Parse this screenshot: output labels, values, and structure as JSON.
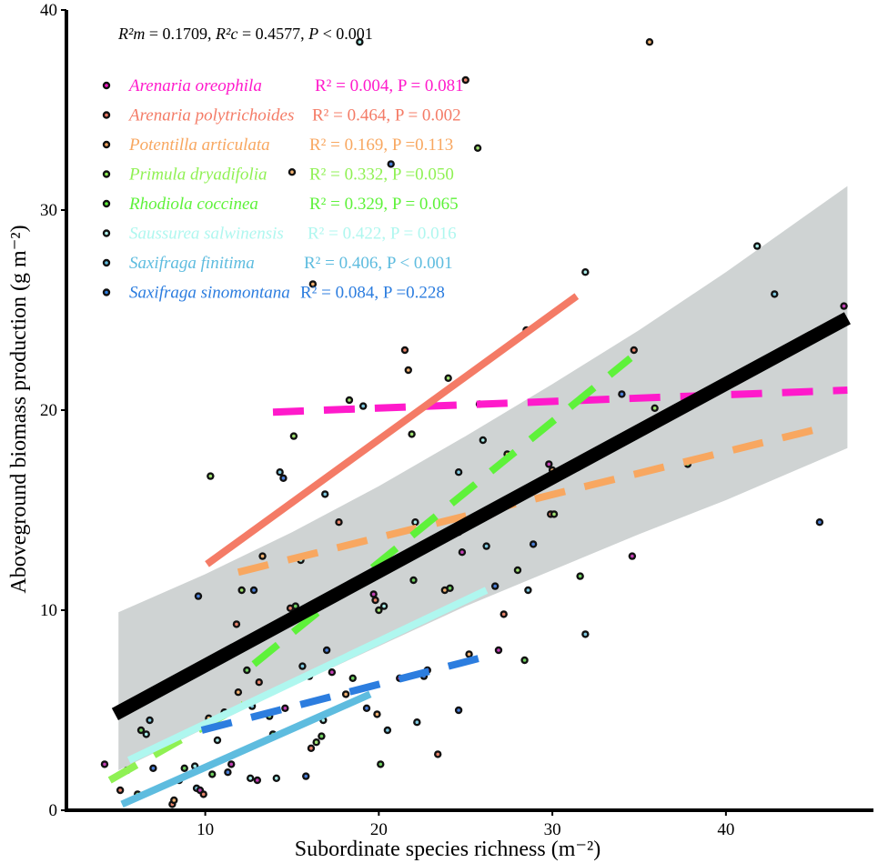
{
  "chart_data": {
    "type": "scatter",
    "title": "",
    "xlabel": "Subordinate species richness (m⁻²)",
    "ylabel": "Aboveground biomass production  (g m⁻²)",
    "xlim": [
      2,
      48.5
    ],
    "ylim": [
      0,
      40
    ],
    "xticks": [
      10,
      20,
      30,
      40
    ],
    "yticks": [
      0,
      10,
      20,
      30,
      40
    ],
    "stats_text": {
      "part1": "R²m",
      "part2": " = 0.1709,  ",
      "part3": "R²c",
      "part4": " = 0.4577, ",
      "part5": "P",
      "part6": " < 0.001"
    },
    "overall_fit": {
      "color": "#000000",
      "line": [
        [
          4.8,
          4.8
        ],
        [
          47,
          24.6
        ]
      ],
      "ci_band": {
        "x": [
          5,
          10,
          15,
          20,
          25,
          30,
          35,
          40,
          47
        ],
        "lower": [
          2.0,
          4.1,
          6.2,
          8.2,
          10.2,
          12.0,
          13.8,
          15.5,
          18.1
        ],
        "upper": [
          9.9,
          11.8,
          13.9,
          16.2,
          18.7,
          21.3,
          24.0,
          26.9,
          31.2
        ]
      }
    },
    "series": [
      {
        "name": "Arenaria oreophila",
        "stat": "R² = 0.004, P = 0.081",
        "color": "#ff1acb",
        "dash": true,
        "line": [
          [
            13.9,
            19.9
          ],
          [
            47,
            21.0
          ]
        ]
      },
      {
        "name": "Arenaria polytrichoides",
        "stat": "R² = 0.464,  P = 0.002",
        "color": "#f47b66",
        "dash": false,
        "line": [
          [
            10.1,
            12.3
          ],
          [
            31.4,
            25.7
          ]
        ]
      },
      {
        "name": "Potentilla articulata",
        "stat": "R² = 0.169, P =0.113",
        "color": "#f8a760",
        "dash": true,
        "line": [
          [
            11.9,
            11.9
          ],
          [
            45.5,
            19.1
          ]
        ]
      },
      {
        "name": "Primula dryadifolia",
        "stat": "R² = 0.332, P =0.050",
        "color": "#8ff153",
        "dash": true,
        "line": [
          [
            4.5,
            1.5
          ],
          [
            12.2,
            5.3
          ]
        ]
      },
      {
        "name": "Rhodiola coccinea",
        "stat": "R² = 0.329, P = 0.065",
        "color": "#5ef23a",
        "dash": true,
        "line": [
          [
            12.8,
            7.3
          ],
          [
            34.5,
            22.6
          ]
        ]
      },
      {
        "name": "Saussurea salwinensis",
        "stat": "R² = 0.422, P = 0.016",
        "color": "#aff7ef",
        "dash": false,
        "line": [
          [
            5.6,
            2.5
          ],
          [
            26.2,
            11.0
          ]
        ]
      },
      {
        "name": "Saxifraga finitima",
        "stat": "R² = 0.406, P < 0.001",
        "color": "#5ebcdf",
        "dash": false,
        "line": [
          [
            5.2,
            0.3
          ],
          [
            19.5,
            5.8
          ]
        ]
      },
      {
        "name": "Saxifraga sinomontana",
        "stat": "R² = 0.084, P =0.228",
        "color": "#2c7ddf",
        "dash": true,
        "line": [
          [
            9.8,
            4.0
          ],
          [
            25.8,
            7.6
          ]
        ]
      }
    ],
    "points": [
      [
        4.2,
        2.3
      ],
      [
        5.1,
        1.0
      ],
      [
        5.5,
        2.0
      ],
      [
        6.1,
        0.8
      ],
      [
        6.3,
        4.0
      ],
      [
        6.6,
        3.8
      ],
      [
        6.8,
        4.5
      ],
      [
        7.0,
        2.1
      ],
      [
        7.9,
        3.2
      ],
      [
        8.1,
        0.3
      ],
      [
        8.2,
        0.5
      ],
      [
        8.5,
        1.5
      ],
      [
        8.8,
        2.1
      ],
      [
        9.4,
        2.2
      ],
      [
        9.5,
        1.1
      ],
      [
        9.6,
        10.7
      ],
      [
        9.7,
        1.0
      ],
      [
        9.9,
        0.8
      ],
      [
        10.2,
        4.6
      ],
      [
        10.3,
        16.7
      ],
      [
        10.4,
        1.8
      ],
      [
        10.7,
        3.5
      ],
      [
        11.1,
        4.9
      ],
      [
        11.3,
        1.9
      ],
      [
        11.5,
        2.3
      ],
      [
        11.8,
        9.3
      ],
      [
        11.9,
        5.9
      ],
      [
        12.1,
        11.0
      ],
      [
        12.4,
        7.0
      ],
      [
        12.6,
        1.6
      ],
      [
        12.7,
        5.2
      ],
      [
        12.8,
        11.0
      ],
      [
        13.0,
        1.5
      ],
      [
        13.1,
        6.4
      ],
      [
        13.3,
        12.7
      ],
      [
        13.7,
        4.7
      ],
      [
        13.9,
        3.8
      ],
      [
        14.1,
        1.6
      ],
      [
        14.3,
        16.9
      ],
      [
        14.5,
        16.6
      ],
      [
        14.6,
        5.1
      ],
      [
        14.9,
        10.1
      ],
      [
        15.0,
        31.9
      ],
      [
        15.1,
        18.7
      ],
      [
        15.2,
        10.2
      ],
      [
        15.5,
        12.5
      ],
      [
        15.6,
        7.2
      ],
      [
        15.8,
        1.7
      ],
      [
        16.0,
        6.7
      ],
      [
        16.1,
        3.1
      ],
      [
        16.2,
        26.3
      ],
      [
        16.4,
        3.4
      ],
      [
        16.7,
        3.7
      ],
      [
        16.8,
        4.5
      ],
      [
        16.9,
        15.8
      ],
      [
        17.0,
        8.0
      ],
      [
        17.3,
        6.9
      ],
      [
        17.7,
        14.4
      ],
      [
        18.1,
        5.8
      ],
      [
        18.3,
        20.5
      ],
      [
        18.5,
        6.6
      ],
      [
        18.9,
        38.4
      ],
      [
        19.1,
        20.2
      ],
      [
        19.3,
        5.1
      ],
      [
        19.7,
        10.8
      ],
      [
        19.8,
        10.5
      ],
      [
        19.9,
        4.8
      ],
      [
        20.0,
        10.0
      ],
      [
        20.1,
        2.3
      ],
      [
        20.3,
        10.2
      ],
      [
        20.5,
        4.0
      ],
      [
        20.7,
        32.3
      ],
      [
        21.2,
        6.6
      ],
      [
        21.5,
        23.0
      ],
      [
        21.7,
        22.0
      ],
      [
        21.9,
        18.8
      ],
      [
        22.0,
        11.5
      ],
      [
        22.1,
        14.4
      ],
      [
        22.2,
        4.4
      ],
      [
        22.6,
        6.7
      ],
      [
        22.8,
        7.0
      ],
      [
        23.4,
        2.8
      ],
      [
        23.8,
        11.0
      ],
      [
        24.0,
        21.6
      ],
      [
        24.1,
        11.1
      ],
      [
        24.6,
        13.9
      ],
      [
        24.6,
        16.9
      ],
      [
        24.6,
        5.0
      ],
      [
        24.8,
        12.9
      ],
      [
        25.0,
        36.5
      ],
      [
        25.2,
        7.8
      ],
      [
        25.7,
        33.1
      ],
      [
        25.8,
        20.3
      ],
      [
        26.0,
        18.5
      ],
      [
        26.2,
        13.2
      ],
      [
        26.7,
        11.2
      ],
      [
        26.9,
        8.0
      ],
      [
        27.2,
        9.8
      ],
      [
        27.4,
        17.8
      ],
      [
        28.0,
        12.0
      ],
      [
        28.4,
        7.5
      ],
      [
        28.5,
        24.0
      ],
      [
        28.6,
        11.0
      ],
      [
        28.9,
        13.3
      ],
      [
        29.8,
        17.3
      ],
      [
        29.9,
        14.8
      ],
      [
        30.0,
        17.0
      ],
      [
        30.1,
        14.8
      ],
      [
        31.6,
        11.7
      ],
      [
        31.9,
        26.9
      ],
      [
        31.9,
        8.8
      ],
      [
        34.0,
        20.8
      ],
      [
        34.6,
        12.7
      ],
      [
        34.7,
        23.0
      ],
      [
        35.6,
        38.4
      ],
      [
        35.9,
        20.1
      ],
      [
        37.8,
        17.3
      ],
      [
        41.8,
        28.2
      ],
      [
        42.8,
        25.8
      ],
      [
        45.4,
        14.4
      ],
      [
        46.8,
        25.2
      ]
    ]
  }
}
